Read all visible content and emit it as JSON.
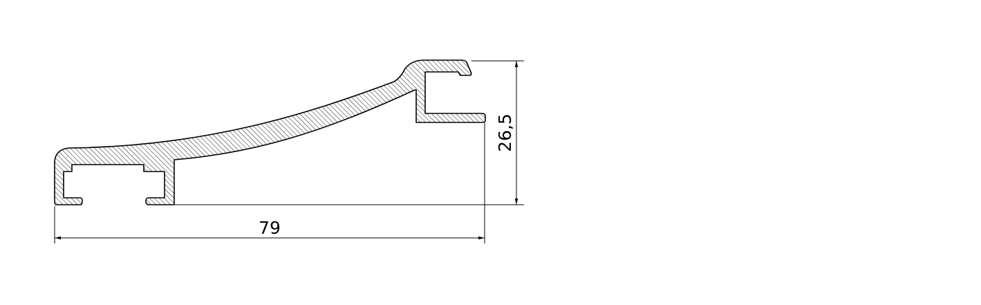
{
  "drawing": {
    "type": "profile-cross-section",
    "hatch": "diagonal",
    "colors": {
      "line": "#000000",
      "background": "#ffffff"
    }
  },
  "dimensions": {
    "width": "79",
    "height": "26,5"
  }
}
